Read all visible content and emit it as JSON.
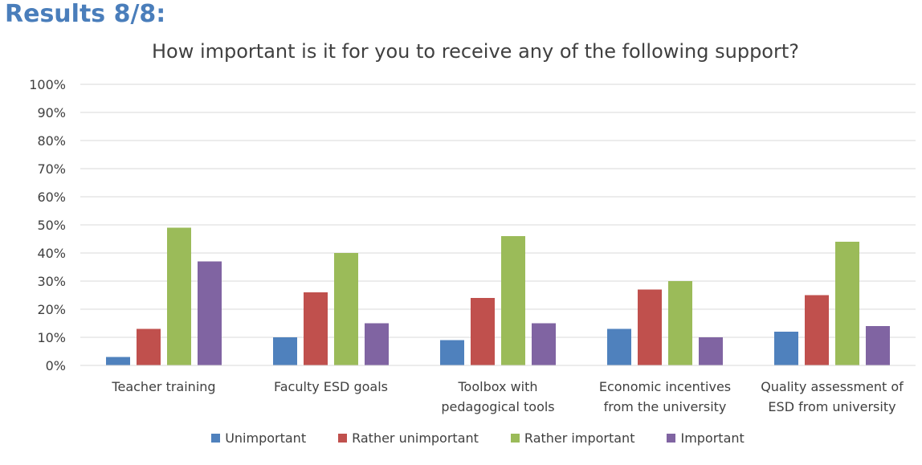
{
  "heading": "Results 8/8:",
  "colors": {
    "Unimportant": "#4f81bd",
    "Rather unimportant": "#c0504d",
    "Rather important": "#9bbb59",
    "Important": "#8064a2",
    "grid": "#d9d9d9",
    "text": "#404040"
  },
  "chart_data": {
    "type": "bar",
    "title": "How important is it for you to receive any of the following support?",
    "xlabel": "",
    "ylabel": "",
    "ylim": [
      0,
      100
    ],
    "yticks": [
      "0%",
      "10%",
      "20%",
      "30%",
      "40%",
      "50%",
      "60%",
      "70%",
      "80%",
      "90%",
      "100%"
    ],
    "categories": [
      [
        "Teacher training"
      ],
      [
        "Faculty ESD goals"
      ],
      [
        "Toolbox with",
        "pedagogical tools"
      ],
      [
        "Economic incentives",
        "from the university"
      ],
      [
        "Quality assessment of",
        "ESD from university"
      ]
    ],
    "series": [
      {
        "name": "Unimportant",
        "values": [
          3,
          10,
          9,
          13,
          12
        ]
      },
      {
        "name": "Rather unimportant",
        "values": [
          13,
          26,
          24,
          27,
          25
        ]
      },
      {
        "name": "Rather important",
        "values": [
          49,
          40,
          46,
          30,
          44
        ]
      },
      {
        "name": "Important",
        "values": [
          37,
          15,
          15,
          10,
          14
        ]
      }
    ],
    "grid": true,
    "legend": "bottom"
  }
}
